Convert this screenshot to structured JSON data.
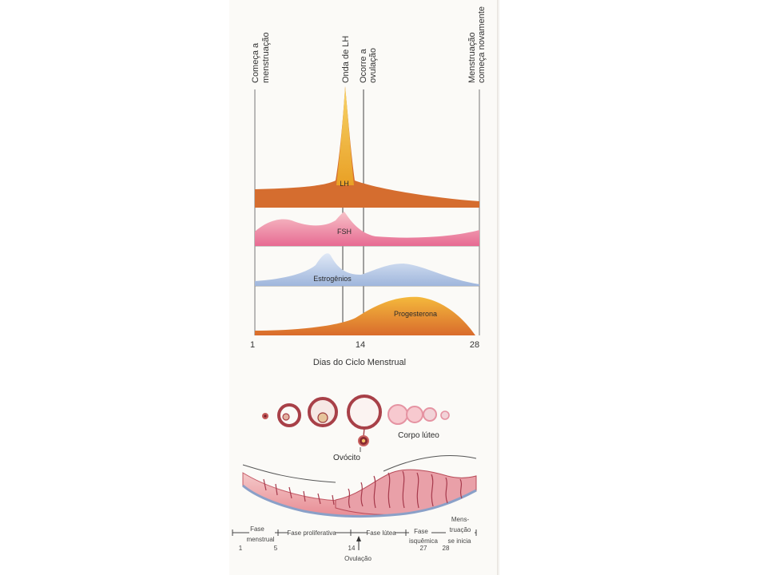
{
  "markers": {
    "start": {
      "line1": "Começa a",
      "line2": "menstruação"
    },
    "lh_surge": "Onda de LH",
    "ovulation_occurs": {
      "line1": "Ocorre a",
      "line2": "ovulação"
    },
    "restart": {
      "line1": "Menstruação",
      "line2": "começa novamente"
    }
  },
  "hormones": {
    "lh": {
      "label": "LH",
      "color": "#d06a2c"
    },
    "fsh": {
      "label": "FSH",
      "color": "#e87c9a"
    },
    "estrogen": {
      "label": "Estrogênios",
      "color": "#a9bedf"
    },
    "progesterone": {
      "label": "Progesterona",
      "color": "#e8922a"
    }
  },
  "axis": {
    "day_start": "1",
    "day_mid": "14",
    "day_end": "28",
    "title": "Dias do Ciclo Menstrual"
  },
  "ovary": {
    "corpus_luteum": "Corpo lúteo",
    "oocyte": "Ovócito"
  },
  "phases": {
    "menstrual": {
      "line1": "Fase",
      "line2": "menstrual"
    },
    "proliferative": "Fase proliferativa",
    "luteal": "Fase lútea",
    "ischemic": {
      "line1": "Fase",
      "line2": "isquêmica"
    },
    "menstruation": {
      "line1": "Mens-",
      "line2": "truação",
      "line3": "se inicia"
    },
    "day_numbers": [
      "1",
      "5",
      "14",
      "27",
      "28"
    ],
    "ovulation": "Ovulação"
  }
}
